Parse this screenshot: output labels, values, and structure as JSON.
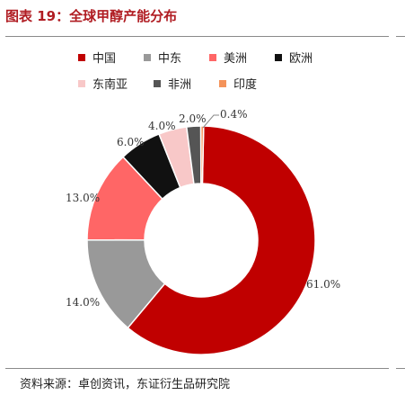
{
  "title": "图表 19：全球甲醇产能分布",
  "source": "资料来源：卓创资讯，东证衍生品研究院",
  "colors": {
    "title": "#b01c22",
    "china": "#c00000",
    "middle_east": "#999999",
    "americas": "#ff6666",
    "europe": "#111111",
    "southeast_asia": "#f8c8c8",
    "africa": "#555555",
    "india": "#f4935a"
  },
  "chart_data": {
    "type": "pie",
    "donut": true,
    "title": "",
    "categories": [
      "中国",
      "中东",
      "美洲",
      "欧洲",
      "东南亚",
      "非洲",
      "印度"
    ],
    "values": [
      61.0,
      14.0,
      13.0,
      6.0,
      4.0,
      2.0,
      0.4
    ],
    "data_labels": [
      "61.0%",
      "14.0%",
      "13.0%",
      "6.0%",
      "4.0%",
      "2.0%",
      "0.4%"
    ],
    "unit": "%",
    "legend_position": "top"
  }
}
